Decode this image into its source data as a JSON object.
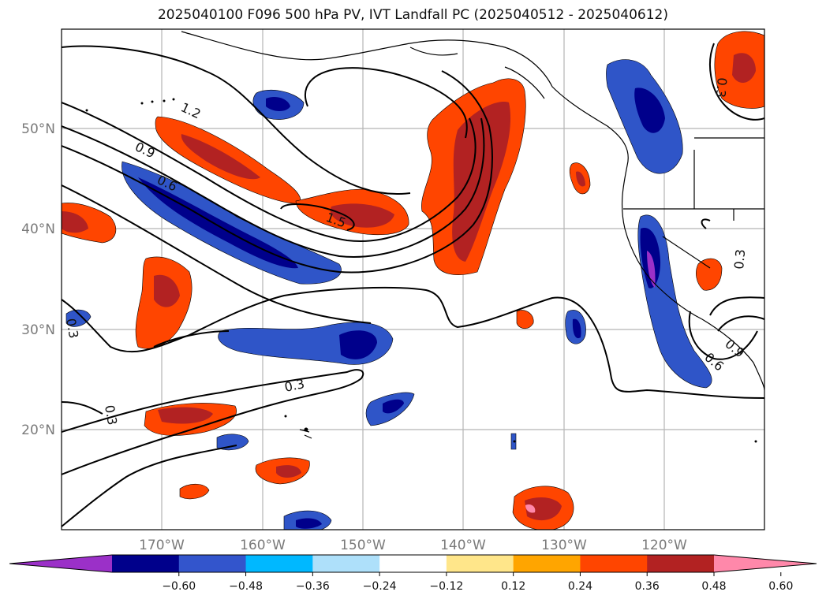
{
  "title": "2025040100 F096 500 hPa PV, IVT Landfall PC (2025040512 - 2025040612)",
  "map": {
    "lat_labels": [
      "50°N",
      "40°N",
      "30°N",
      "20°N"
    ],
    "lon_labels": [
      "170°W",
      "160°W",
      "150°W",
      "140°W",
      "130°W",
      "120°W"
    ],
    "contour_labels": [
      "1.2",
      "0.9",
      "0.6",
      "1.5",
      "0.3",
      "0.3",
      "0.3",
      "0.3",
      "0.6",
      "0.9",
      "0.3"
    ]
  },
  "colorbar": {
    "ticks": [
      "−0.60",
      "−0.48",
      "−0.36",
      "−0.24",
      "−0.12",
      "0.12",
      "0.24",
      "0.36",
      "0.48",
      "0.60"
    ],
    "colors": [
      "#9b30c8",
      "#00008b",
      "#3355cc",
      "#00b8ff",
      "#aee0fa",
      "#ffffff",
      "#ffe68a",
      "#ffa500",
      "#ff4500",
      "#b22222",
      "#ff88aa"
    ]
  }
}
